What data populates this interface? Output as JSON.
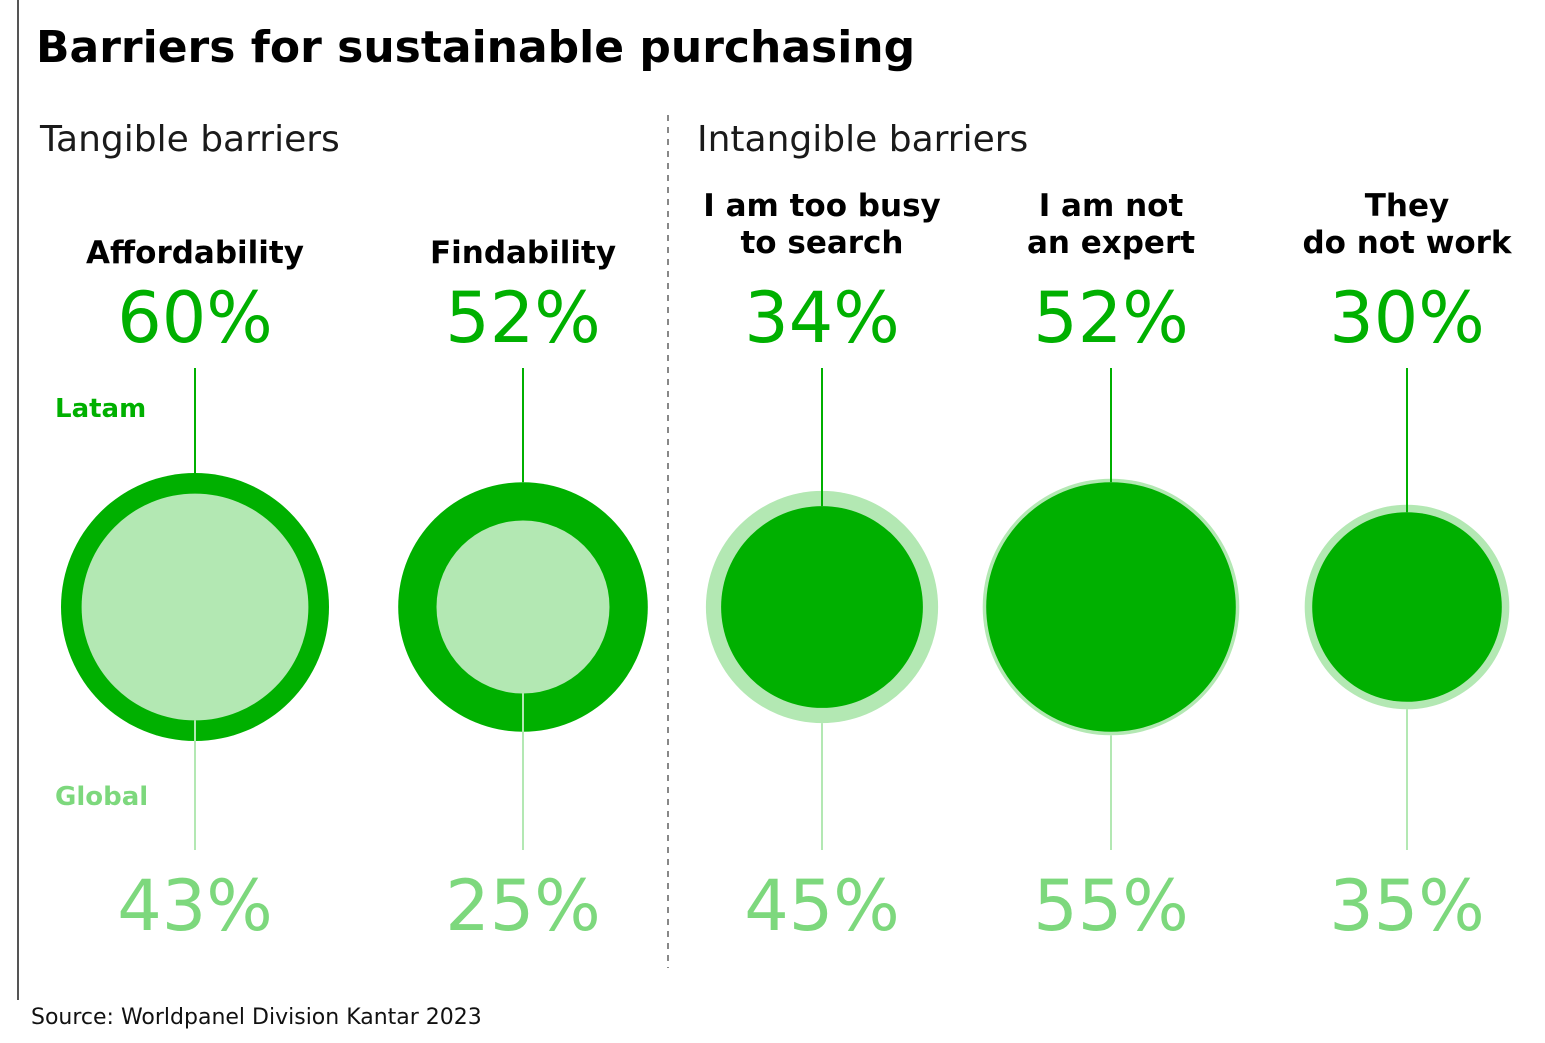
{
  "title": "Barriers for sustainable purchasing",
  "source": "Source: Worldpanel Division Kantar 2023",
  "colors": {
    "latam": "#00b000",
    "global": "#b3e8b3",
    "global_text": "#7dd87d"
  },
  "chart_data": {
    "type": "bubble",
    "title": "Barriers for sustainable purchasing",
    "unit": "%",
    "groups": [
      {
        "label": "Tangible barriers",
        "categories": [
          "Affordability",
          "Findability"
        ]
      },
      {
        "label": "Intangible barriers",
        "categories": [
          "I am too busy to search",
          "I am not an expert",
          "They do not work"
        ]
      }
    ],
    "categories": [
      {
        "label_lines": [
          "Affordability"
        ],
        "latam": 60,
        "global": 43
      },
      {
        "label_lines": [
          "Findability"
        ],
        "latam": 52,
        "global": 25
      },
      {
        "label_lines": [
          "I am too busy",
          "to search"
        ],
        "latam": 34,
        "global": 45
      },
      {
        "label_lines": [
          "I am not",
          "an expert"
        ],
        "latam": 52,
        "global": 55
      },
      {
        "label_lines": [
          "They",
          "do not work"
        ],
        "latam": 30,
        "global": 35
      }
    ],
    "series": [
      {
        "name": "Latam",
        "key": "latam"
      },
      {
        "name": "Global",
        "key": "global"
      }
    ],
    "legend": "left"
  }
}
